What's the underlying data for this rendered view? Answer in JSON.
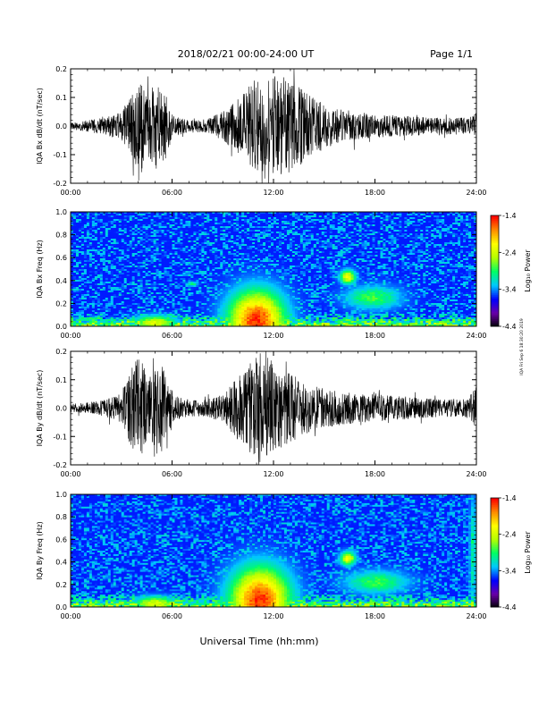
{
  "header": {
    "title": "2018/02/21  00:00-24:00 UT",
    "page": "Page 1/1"
  },
  "side_note": "IQA Fri Sep 6 18:30:20 2019",
  "xaxis": {
    "label": "Universal Time (hh:mm)",
    "ticks": [
      "00:00",
      "06:00",
      "12:00",
      "18:00",
      "24:00"
    ],
    "range_hours": [
      0,
      24
    ]
  },
  "colorbar": {
    "label": "Log₁₀ Power",
    "ticks": [
      "-1.4",
      "-2.4",
      "-3.4",
      "-4.4"
    ],
    "range": [
      -4.4,
      -1.4
    ],
    "colors": [
      "#000000",
      "#6a00a8",
      "#0000ff",
      "#00c8ff",
      "#00ff64",
      "#b4ff00",
      "#ffff00",
      "#ff8c00",
      "#ff0000"
    ]
  },
  "chart_data": [
    {
      "type": "line",
      "ylabel": "IQA Bx dB/dt (nT/sec)",
      "ylim": [
        -0.2,
        0.2
      ],
      "yticks": [
        "0.2",
        "0.1",
        "0.0",
        "-0.1",
        "-0.2"
      ],
      "x_unit": "hours UT",
      "amplitude_envelope": [
        {
          "x": 0,
          "y": 0.012
        },
        {
          "x": 1,
          "y": 0.02
        },
        {
          "x": 2,
          "y": 0.03
        },
        {
          "x": 3,
          "y": 0.05
        },
        {
          "x": 3.7,
          "y": 0.12
        },
        {
          "x": 4.2,
          "y": 0.17
        },
        {
          "x": 4.5,
          "y": 0.1
        },
        {
          "x": 5,
          "y": 0.16
        },
        {
          "x": 5.6,
          "y": 0.12
        },
        {
          "x": 6,
          "y": 0.04
        },
        {
          "x": 7,
          "y": 0.02
        },
        {
          "x": 8,
          "y": 0.025
        },
        {
          "x": 9,
          "y": 0.05
        },
        {
          "x": 10,
          "y": 0.1
        },
        {
          "x": 10.5,
          "y": 0.14
        },
        {
          "x": 11,
          "y": 0.18
        },
        {
          "x": 12,
          "y": 0.19
        },
        {
          "x": 13,
          "y": 0.16
        },
        {
          "x": 14,
          "y": 0.12
        },
        {
          "x": 15,
          "y": 0.08
        },
        {
          "x": 16,
          "y": 0.06
        },
        {
          "x": 17,
          "y": 0.05
        },
        {
          "x": 18,
          "y": 0.04
        },
        {
          "x": 20,
          "y": 0.035
        },
        {
          "x": 22,
          "y": 0.03
        },
        {
          "x": 23.5,
          "y": 0.03
        },
        {
          "x": 24,
          "y": 0.04
        }
      ]
    },
    {
      "type": "heatmap",
      "ylabel": "IQA Bx Freq (Hz)",
      "ylim": [
        0,
        1
      ],
      "yticks": [
        "1.0",
        "0.8",
        "0.6",
        "0.4",
        "0.2",
        "0.0"
      ],
      "x_unit": "hours UT",
      "background_log_power": -3.6,
      "features": [
        {
          "t": 11,
          "f": 0.05,
          "dt": 1.6,
          "df": 0.25,
          "level": -1.5
        },
        {
          "t": 16.4,
          "f": 0.43,
          "dt": 0.45,
          "df": 0.06,
          "level": -2.2
        },
        {
          "t": 17.9,
          "f": 0.25,
          "dt": 1.6,
          "df": 0.1,
          "level": -2.8
        },
        {
          "t": 5,
          "f": 0.03,
          "dt": 1.2,
          "df": 0.06,
          "level": -2.3
        },
        {
          "t": 7.2,
          "f": 0.37,
          "dt": 0.3,
          "df": 0.02,
          "level": -2.9
        }
      ]
    },
    {
      "type": "line",
      "ylabel": "IQA By dB/dt (nT/sec)",
      "ylim": [
        -0.2,
        0.2
      ],
      "yticks": [
        "0.2",
        "0.1",
        "0.0",
        "-0.1",
        "-0.2"
      ],
      "x_unit": "hours UT",
      "amplitude_envelope": [
        {
          "x": 0,
          "y": 0.015
        },
        {
          "x": 1,
          "y": 0.02
        },
        {
          "x": 2,
          "y": 0.03
        },
        {
          "x": 3,
          "y": 0.05
        },
        {
          "x": 3.6,
          "y": 0.14
        },
        {
          "x": 4.1,
          "y": 0.19
        },
        {
          "x": 4.6,
          "y": 0.1
        },
        {
          "x": 5.2,
          "y": 0.18
        },
        {
          "x": 5.8,
          "y": 0.1
        },
        {
          "x": 6.2,
          "y": 0.04
        },
        {
          "x": 7,
          "y": 0.03
        },
        {
          "x": 8,
          "y": 0.03
        },
        {
          "x": 9,
          "y": 0.05
        },
        {
          "x": 10,
          "y": 0.12
        },
        {
          "x": 10.6,
          "y": 0.16
        },
        {
          "x": 11.3,
          "y": 0.2
        },
        {
          "x": 12,
          "y": 0.16
        },
        {
          "x": 13,
          "y": 0.12
        },
        {
          "x": 14,
          "y": 0.09
        },
        {
          "x": 15,
          "y": 0.07
        },
        {
          "x": 16,
          "y": 0.06
        },
        {
          "x": 17,
          "y": 0.05
        },
        {
          "x": 18,
          "y": 0.05
        },
        {
          "x": 20,
          "y": 0.04
        },
        {
          "x": 22,
          "y": 0.03
        },
        {
          "x": 23.5,
          "y": 0.035
        },
        {
          "x": 24,
          "y": 0.08
        }
      ]
    },
    {
      "type": "heatmap",
      "ylabel": "IQA By Freq (Hz)",
      "ylim": [
        0,
        1
      ],
      "yticks": [
        "1.0",
        "0.8",
        "0.6",
        "0.4",
        "0.2",
        "0.0"
      ],
      "x_unit": "hours UT",
      "background_log_power": -3.6,
      "features": [
        {
          "t": 11.2,
          "f": 0.06,
          "dt": 1.7,
          "df": 0.28,
          "level": -1.5
        },
        {
          "t": 16.4,
          "f": 0.43,
          "dt": 0.45,
          "df": 0.06,
          "level": -2.2
        },
        {
          "t": 18.1,
          "f": 0.22,
          "dt": 1.8,
          "df": 0.1,
          "level": -2.8
        },
        {
          "t": 5,
          "f": 0.03,
          "dt": 1.2,
          "df": 0.06,
          "level": -2.3
        },
        {
          "t": 23.8,
          "f": 0.5,
          "dt": 0.2,
          "df": 0.5,
          "level": -3.0
        }
      ]
    }
  ]
}
